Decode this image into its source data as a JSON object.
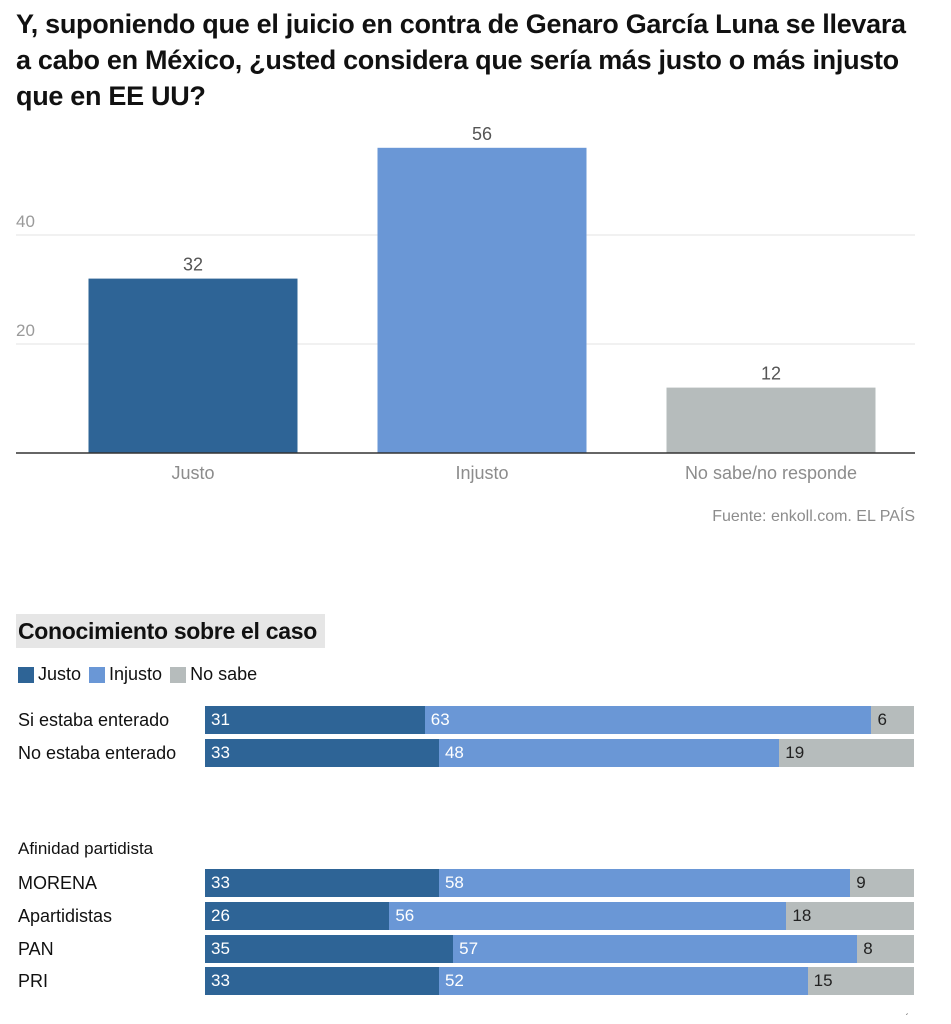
{
  "title": "Y, suponiendo que el juicio en contra de Genaro García Luna se llevara a cabo en México, ¿usted considera que sería más justo o más injusto que en EE UU?",
  "source": "Fuente: enkoll.com. EL PAÍS",
  "section_title": "Conocimiento sobre el caso",
  "legend": [
    {
      "label": "Justo",
      "color": "#2e6496"
    },
    {
      "label": "Injusto",
      "color": "#6a97d6"
    },
    {
      "label": "No sabe",
      "color": "#b6bcbc"
    }
  ],
  "group_label": "Afinidad partidista",
  "corner_mark": "´",
  "chart_data": [
    {
      "type": "bar",
      "categories": [
        "Justo",
        "Injusto",
        "No sabe/no responde"
      ],
      "values": [
        32,
        56,
        12
      ],
      "colors": [
        "#2e6496",
        "#6a97d6",
        "#b6bcbc"
      ],
      "yticks": [
        20,
        40
      ],
      "ylim": [
        0,
        60
      ],
      "grid": true
    },
    {
      "type": "bar",
      "orientation": "horizontal",
      "stacked": true,
      "series_names": [
        "Justo",
        "Injusto",
        "No sabe"
      ],
      "rows": [
        {
          "label": "Si estaba enterado",
          "values": [
            31,
            63,
            6
          ]
        },
        {
          "label": "No estaba enterado",
          "values": [
            33,
            48,
            19
          ]
        }
      ]
    },
    {
      "type": "bar",
      "orientation": "horizontal",
      "stacked": true,
      "series_names": [
        "Justo",
        "Injusto",
        "No sabe"
      ],
      "rows": [
        {
          "label": "MORENA",
          "values": [
            33,
            58,
            9
          ]
        },
        {
          "label": "Apartidistas",
          "values": [
            26,
            56,
            18
          ]
        },
        {
          "label": "PAN",
          "values": [
            35,
            57,
            8
          ]
        },
        {
          "label": "PRI",
          "values": [
            33,
            52,
            15
          ]
        }
      ]
    }
  ]
}
